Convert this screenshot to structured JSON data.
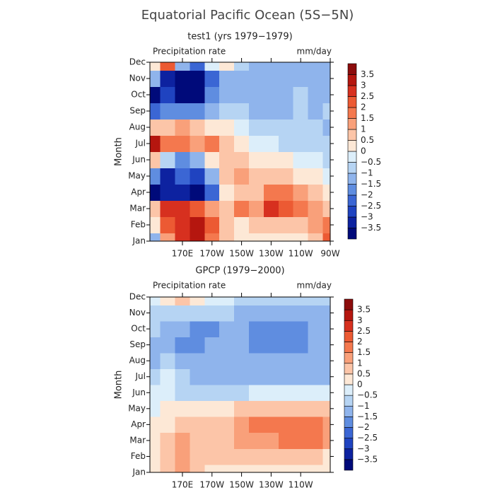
{
  "title": "Equatorial Pacific Ocean (5S−5N)",
  "chart_data": [
    {
      "type": "heatmap",
      "title": "test1 (yrs 1979−1979)",
      "variable": "Precipitation rate",
      "units": "mm/day",
      "y_label": "Month",
      "y_categories": [
        "Jan",
        "Feb",
        "Mar",
        "Apr",
        "May",
        "Jun",
        "Jul",
        "Aug",
        "Sep",
        "Oct",
        "Nov",
        "Dec"
      ],
      "x": [
        150,
        160,
        170,
        180,
        190,
        200,
        210,
        220,
        230,
        240,
        250,
        260,
        270
      ],
      "xlim": [
        148,
        270
      ],
      "xticks": [
        {
          "value": 170,
          "label": "170E"
        },
        {
          "value": 190,
          "label": "170W"
        },
        {
          "value": 210,
          "label": "150W"
        },
        {
          "value": 230,
          "label": "130W"
        },
        {
          "value": 250,
          "label": "110W"
        },
        {
          "value": 270,
          "label": "90W"
        }
      ],
      "values": [
        [
          -1,
          1.5,
          3,
          3.5,
          2,
          1,
          0.5,
          0.5,
          0.5,
          0.5,
          0.5,
          1,
          2.5
        ],
        [
          0.5,
          2.5,
          3,
          3.5,
          2.5,
          1,
          0.5,
          1,
          1,
          1,
          1,
          1.5,
          2
        ],
        [
          1,
          3,
          3,
          2.5,
          1.5,
          1,
          2,
          1.5,
          3,
          2.5,
          2,
          1.5,
          1
        ],
        [
          -3.5,
          -3,
          -3,
          -3.5,
          -2,
          0.5,
          1,
          1,
          2,
          2,
          1.5,
          1,
          0.5
        ],
        [
          -1.5,
          -3,
          -2,
          -2.5,
          -1,
          1,
          1.5,
          1,
          1,
          1,
          0.5,
          0.5,
          0
        ],
        [
          1,
          -0.5,
          -1.5,
          -1,
          0.5,
          1,
          1,
          0.5,
          0.5,
          0.5,
          0,
          0,
          -0.5
        ],
        [
          3.5,
          2,
          2,
          1.5,
          2,
          1,
          0.5,
          0,
          0,
          -0.5,
          -0.5,
          -0.5,
          -0.5
        ],
        [
          1,
          1,
          1.5,
          1,
          0.5,
          0.5,
          0,
          -0.5,
          -0.5,
          -0.5,
          -0.5,
          -0.5,
          -1
        ],
        [
          -2,
          -1.5,
          -1.5,
          -1.5,
          -1,
          -0.5,
          -0.5,
          -1,
          -1,
          -1,
          -0.5,
          -1,
          -0.5
        ],
        [
          -3.5,
          -2.5,
          -3.5,
          -3.5,
          -1.5,
          -1,
          -1,
          -1,
          -1,
          -1,
          -0.5,
          -1,
          -1
        ],
        [
          -1,
          -3,
          -3.5,
          -3.5,
          -2,
          -1,
          -1,
          -1,
          -1,
          -1,
          -1,
          -1,
          -1
        ],
        [
          0.5,
          2.5,
          -1,
          -2,
          0,
          0.5,
          -0.5,
          -1,
          -1,
          -1,
          -1,
          -1,
          -1
        ]
      ],
      "levels": [
        {
          "value": -3.5,
          "label": "−3.5"
        },
        {
          "value": -3,
          "label": "−3"
        },
        {
          "value": -2.5,
          "label": "−2.5"
        },
        {
          "value": -2,
          "label": "−2"
        },
        {
          "value": -1.5,
          "label": "−1.5"
        },
        {
          "value": -1,
          "label": "−1"
        },
        {
          "value": -0.5,
          "label": "−0.5"
        },
        0,
        0.5,
        1,
        1.5,
        2,
        2.5,
        3,
        3.5
      ],
      "colors": [
        "#000a7a",
        "#0d22a0",
        "#1f43c0",
        "#3b66d4",
        "#5f8de0",
        "#8fb4ec",
        "#b6d4f3",
        "#dceefa",
        "#fde8d6",
        "#fcc5a8",
        "#f9a07a",
        "#f4784e",
        "#ec5a33",
        "#d7301f",
        "#b5160f",
        "#8c0c0c"
      ]
    },
    {
      "type": "heatmap",
      "title": "GPCP (1979−2000)",
      "variable": "Precipitation rate",
      "units": "mm/day",
      "y_label": "Month",
      "y_categories": [
        "Jan",
        "Feb",
        "Mar",
        "Apr",
        "May",
        "Jun",
        "Jul",
        "Aug",
        "Sep",
        "Oct",
        "Nov",
        "Dec"
      ],
      "x": [
        150,
        160,
        170,
        180,
        190,
        200,
        210,
        220,
        230,
        240,
        250,
        260,
        270
      ],
      "xlim": [
        148,
        270
      ],
      "xticks": [
        {
          "value": 170,
          "label": "170E"
        },
        {
          "value": 190,
          "label": "170W"
        },
        {
          "value": 210,
          "label": "150W"
        },
        {
          "value": 230,
          "label": "130W"
        },
        {
          "value": 250,
          "label": "110W"
        }
      ],
      "values": [
        [
          0.5,
          1,
          1.5,
          1,
          0.5,
          0.5,
          0.5,
          0.5,
          0.5,
          0.5,
          0.5,
          0.5,
          0.5
        ],
        [
          0.5,
          1,
          1.5,
          1,
          1,
          1,
          1,
          1,
          1,
          1,
          1,
          1,
          0.5
        ],
        [
          0.5,
          1,
          1.5,
          1,
          1,
          1,
          1.5,
          1.5,
          1.5,
          2,
          2,
          2,
          1.5
        ],
        [
          0.5,
          0.5,
          1,
          1,
          1,
          1,
          1.5,
          2,
          2,
          2,
          2,
          2,
          1.5
        ],
        [
          0,
          0.5,
          0.5,
          0.5,
          0.5,
          0.5,
          1,
          1,
          1,
          1,
          1,
          1,
          1
        ],
        [
          0,
          0,
          -0.5,
          -0.5,
          -0.5,
          -0.5,
          -0.5,
          0,
          0,
          0,
          0,
          0,
          0
        ],
        [
          -0.5,
          0,
          -0.5,
          -1,
          -1,
          -1,
          -1,
          -1,
          -1,
          -1,
          -1,
          -1,
          -1
        ],
        [
          -1,
          -0.5,
          -1,
          -1,
          -1,
          -1,
          -1,
          -1,
          -1,
          -1,
          -1,
          -1,
          -1
        ],
        [
          -1,
          -1,
          -1.5,
          -1.5,
          -1,
          -1,
          -1,
          -1.5,
          -1.5,
          -1.5,
          -1.5,
          -1,
          -1
        ],
        [
          -0.5,
          -1,
          -1,
          -1.5,
          -1.5,
          -1,
          -1,
          -1.5,
          -1.5,
          -1.5,
          -1.5,
          -1,
          -1
        ],
        [
          -0.5,
          -0.5,
          -0.5,
          -0.5,
          -0.5,
          -0.5,
          -1,
          -1,
          -1,
          -1,
          -1,
          -1,
          -1
        ],
        [
          0,
          0.5,
          1,
          0.5,
          0,
          0,
          -0.5,
          -0.5,
          -0.5,
          -0.5,
          -0.5,
          -0.5,
          -0.5
        ]
      ],
      "levels": [
        {
          "value": -3.5,
          "label": "−3.5"
        },
        {
          "value": -3,
          "label": "−3"
        },
        {
          "value": -2.5,
          "label": "−2.5"
        },
        {
          "value": -2,
          "label": "−2"
        },
        {
          "value": -1.5,
          "label": "−1.5"
        },
        {
          "value": -1,
          "label": "−1"
        },
        {
          "value": -0.5,
          "label": "−0.5"
        },
        0,
        0.5,
        1,
        1.5,
        2,
        2.5,
        3,
        3.5
      ],
      "colors": [
        "#000a7a",
        "#0d22a0",
        "#1f43c0",
        "#3b66d4",
        "#5f8de0",
        "#8fb4ec",
        "#b6d4f3",
        "#dceefa",
        "#fde8d6",
        "#fcc5a8",
        "#f9a07a",
        "#f4784e",
        "#ec5a33",
        "#d7301f",
        "#b5160f",
        "#8c0c0c"
      ]
    }
  ]
}
